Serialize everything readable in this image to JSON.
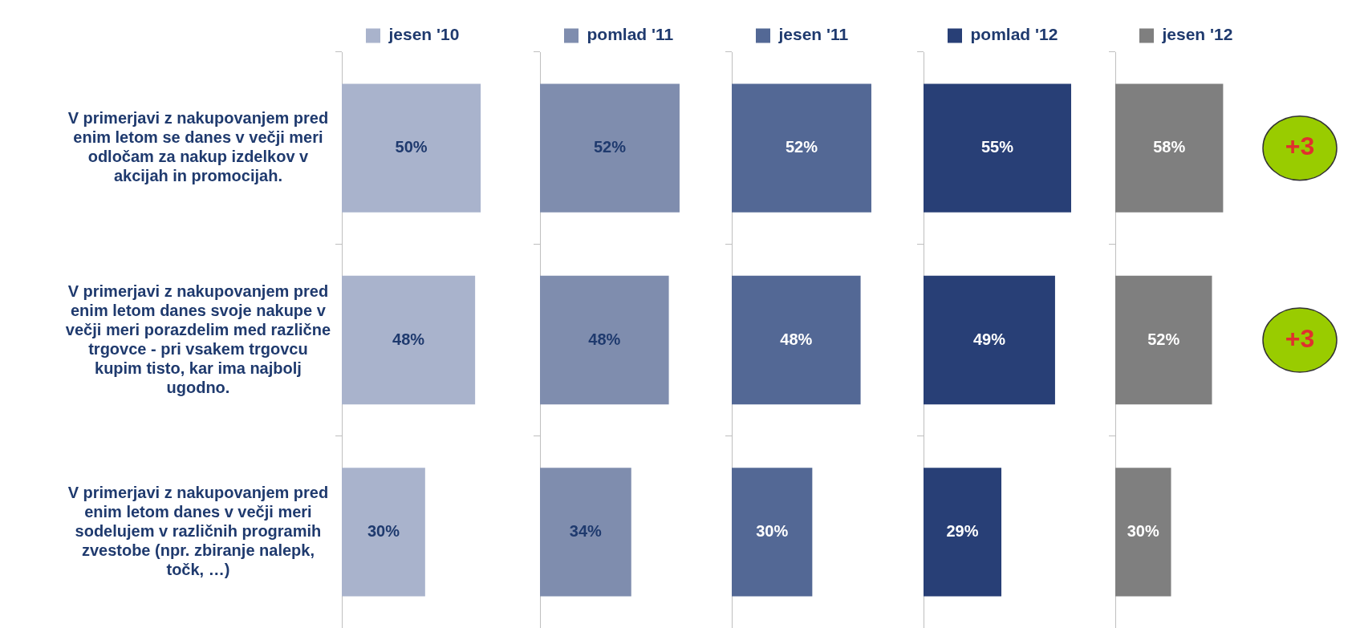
{
  "chart_data": [
    {
      "type": "bar",
      "orientation": "horizontal",
      "categories": [
        "V primerjavi z nakupovanjem pred enim letom se danes v večji meri odločam za nakup izdelkov v akcijah in promocijah.",
        "V primerjavi z nakupovanjem pred enim letom danes svoje nakupe v večji meri porazdelim med različne trgovce - pri vsakem trgovcu kupim tisto, kar ima najbolj ugodno.",
        "V primerjavi z nakupovanjem pred enim letom danes v večji meri sodelujem v različnih programih zvestobe (npr. zbiranje nalepk, točk, …)"
      ],
      "series": [
        {
          "name": "jesen '10",
          "color": "#a9b3cc",
          "values": [
            50,
            48,
            30
          ],
          "value_labels": [
            "50%",
            "48%",
            "30%"
          ]
        }
      ],
      "legend": "top",
      "tick_labels": "y"
    },
    {
      "type": "bar",
      "orientation": "horizontal",
      "categories": [
        null,
        null,
        null
      ],
      "series": [
        {
          "name": "pomlad '11",
          "color": "#7f8dae",
          "values": [
            52,
            48,
            34
          ],
          "value_labels": [
            "52%",
            "48%",
            "34%"
          ]
        }
      ],
      "legend": "top",
      "tick_labels": false
    },
    {
      "type": "bar",
      "orientation": "horizontal",
      "categories": [
        null,
        null,
        null
      ],
      "series": [
        {
          "name": "jesen '11",
          "color": "#536895",
          "values": [
            52,
            48,
            30
          ],
          "value_labels": [
            "52%",
            "48%",
            "30%"
          ]
        }
      ],
      "legend": "top",
      "tick_labels": false
    },
    {
      "type": "bar",
      "orientation": "horizontal",
      "categories": [
        null,
        null,
        null
      ],
      "series": [
        {
          "name": "pomlad '12",
          "color": "#283f76",
          "values": [
            55,
            49,
            29
          ],
          "value_labels": [
            "55%",
            "49%",
            "29%"
          ]
        }
      ],
      "legend": "top",
      "tick_labels": false
    },
    {
      "type": "bar",
      "orientation": "horizontal",
      "categories": [
        null,
        null,
        null
      ],
      "series": [
        {
          "name": "jesen '12",
          "color": "#7f7f7f",
          "values": [
            58,
            52,
            30
          ],
          "value_labels": [
            "58%",
            "52%",
            "30%"
          ]
        }
      ],
      "legend": "top",
      "tick_labels": false,
      "annotations": [
        "+3",
        "+3"
      ]
    }
  ]
}
